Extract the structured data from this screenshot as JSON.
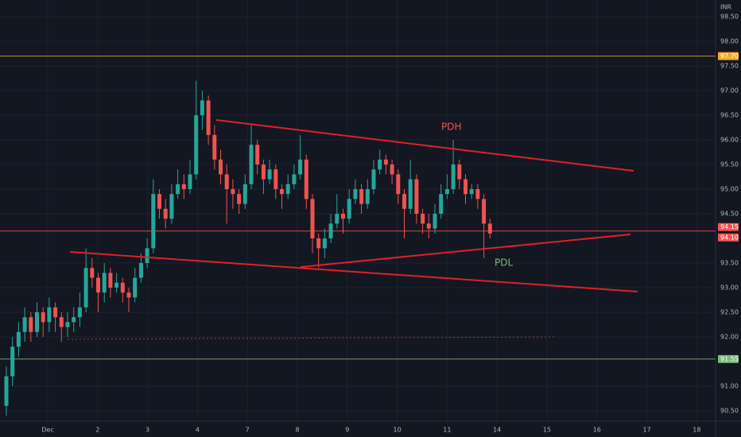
{
  "chart_data": {
    "type": "candlestick",
    "currency": "INR",
    "up_color": "#26a69a",
    "down_color": "#ef5350",
    "grid": true,
    "ylim": [
      90.29,
      98.84
    ],
    "yticks": [
      {
        "value": 90.5,
        "label": "90.50"
      },
      {
        "value": 91,
        "label": "91.00"
      },
      {
        "value": 92,
        "label": "92.00"
      },
      {
        "value": 92.5,
        "label": "92.50"
      },
      {
        "value": 93,
        "label": "93.00"
      },
      {
        "value": 93.5,
        "label": "93.50"
      },
      {
        "value": 94.5,
        "label": "94.50"
      },
      {
        "value": 95,
        "label": "95.00"
      },
      {
        "value": 95.5,
        "label": "95.50"
      },
      {
        "value": 96,
        "label": "96.00"
      },
      {
        "value": 96.5,
        "label": "96.50"
      },
      {
        "value": 97,
        "label": "97.00"
      },
      {
        "value": 97.5,
        "label": "97.50"
      },
      {
        "value": 98,
        "label": "98.00"
      },
      {
        "value": 98.5,
        "label": "98.50"
      }
    ],
    "categories": [
      "Dec",
      "2",
      "3",
      "4",
      "7",
      "8",
      "9",
      "10",
      "11",
      "14",
      "15",
      "16",
      "17",
      "18"
    ],
    "candles": [
      [
        90.6,
        91.4,
        90.4,
        91.2
      ],
      [
        91.2,
        92.0,
        91.0,
        91.8
      ],
      [
        91.8,
        92.3,
        91.6,
        92.1
      ],
      [
        92.1,
        92.6,
        91.9,
        92.4
      ],
      [
        92.4,
        92.5,
        91.9,
        92.1
      ],
      [
        92.1,
        92.7,
        92.0,
        92.5
      ],
      [
        92.5,
        92.6,
        92.0,
        92.3
      ],
      [
        92.3,
        92.8,
        92.1,
        92.6
      ],
      [
        92.6,
        92.7,
        92.1,
        92.4
      ],
      [
        92.4,
        92.5,
        91.9,
        92.2
      ],
      [
        92.2,
        92.5,
        92.0,
        92.3
      ],
      [
        92.3,
        92.6,
        92.1,
        92.4
      ],
      [
        92.4,
        92.9,
        92.2,
        92.6
      ],
      [
        92.6,
        93.8,
        92.5,
        93.4
      ],
      [
        93.4,
        93.6,
        93.0,
        93.2
      ],
      [
        93.2,
        93.3,
        92.5,
        92.9
      ],
      [
        92.9,
        93.5,
        92.7,
        93.3
      ],
      [
        93.3,
        93.4,
        92.8,
        93.0
      ],
      [
        93.0,
        93.3,
        92.9,
        93.1
      ],
      [
        93.1,
        93.2,
        92.7,
        92.9
      ],
      [
        92.9,
        93.0,
        92.5,
        92.8
      ],
      [
        92.8,
        93.4,
        92.7,
        93.2
      ],
      [
        93.2,
        93.7,
        93.1,
        93.5
      ],
      [
        93.5,
        94.0,
        93.4,
        93.8
      ],
      [
        93.8,
        95.2,
        93.7,
        94.9
      ],
      [
        94.9,
        95.0,
        94.4,
        94.6
      ],
      [
        94.6,
        94.8,
        94.2,
        94.4
      ],
      [
        94.4,
        95.1,
        94.3,
        94.9
      ],
      [
        94.9,
        95.4,
        94.8,
        95.1
      ],
      [
        95.1,
        95.3,
        94.8,
        95.0
      ],
      [
        95.0,
        95.6,
        94.9,
        95.3
      ],
      [
        95.3,
        97.2,
        95.2,
        96.5
      ],
      [
        96.5,
        97.0,
        96.2,
        96.8
      ],
      [
        96.8,
        96.9,
        95.9,
        96.1
      ],
      [
        96.1,
        96.3,
        95.4,
        95.6
      ],
      [
        95.6,
        95.8,
        95.1,
        95.3
      ],
      [
        95.3,
        95.5,
        94.3,
        95.0
      ],
      [
        95.0,
        95.2,
        94.6,
        94.9
      ],
      [
        94.9,
        95.0,
        94.5,
        94.7
      ],
      [
        94.7,
        95.3,
        94.6,
        95.1
      ],
      [
        95.1,
        96.3,
        95.0,
        95.9
      ],
      [
        95.9,
        96.0,
        95.3,
        95.5
      ],
      [
        95.5,
        95.6,
        94.9,
        95.2
      ],
      [
        95.2,
        95.6,
        95.1,
        95.4
      ],
      [
        95.4,
        95.5,
        94.8,
        95.0
      ],
      [
        95.0,
        95.1,
        94.6,
        94.9
      ],
      [
        94.9,
        95.3,
        94.8,
        95.1
      ],
      [
        95.1,
        95.5,
        95.0,
        95.3
      ],
      [
        95.3,
        96.1,
        95.2,
        95.6
      ],
      [
        95.6,
        95.7,
        94.6,
        94.8
      ],
      [
        94.8,
        94.9,
        93.7,
        94.0
      ],
      [
        94.0,
        94.1,
        93.4,
        93.8
      ],
      [
        93.8,
        94.2,
        93.6,
        94.0
      ],
      [
        94.0,
        94.5,
        93.9,
        94.3
      ],
      [
        94.3,
        94.9,
        94.2,
        94.5
      ],
      [
        94.5,
        94.6,
        94.1,
        94.4
      ],
      [
        94.4,
        95.0,
        94.3,
        94.8
      ],
      [
        94.8,
        95.2,
        94.7,
        95.0
      ],
      [
        95.0,
        95.1,
        94.5,
        94.7
      ],
      [
        94.7,
        95.2,
        94.6,
        95.0
      ],
      [
        95.0,
        95.6,
        94.9,
        95.4
      ],
      [
        95.4,
        95.8,
        95.3,
        95.6
      ],
      [
        95.6,
        95.7,
        95.3,
        95.5
      ],
      [
        95.5,
        95.6,
        95.1,
        95.3
      ],
      [
        95.3,
        95.4,
        94.7,
        94.9
      ],
      [
        94.9,
        95.0,
        94.0,
        94.6
      ],
      [
        94.6,
        95.6,
        94.5,
        95.2
      ],
      [
        95.2,
        95.3,
        94.3,
        94.5
      ],
      [
        94.5,
        94.6,
        94.1,
        94.3
      ],
      [
        94.3,
        94.5,
        94.0,
        94.2
      ],
      [
        94.2,
        94.7,
        94.1,
        94.5
      ],
      [
        94.5,
        95.1,
        94.4,
        94.9
      ],
      [
        94.9,
        95.3,
        94.8,
        95.0
      ],
      [
        95.0,
        96.0,
        94.9,
        95.5
      ],
      [
        95.5,
        95.6,
        95.0,
        95.2
      ],
      [
        95.2,
        95.3,
        94.7,
        94.9
      ],
      [
        94.9,
        95.1,
        94.8,
        95.0
      ],
      [
        95.0,
        95.1,
        94.6,
        94.8
      ],
      [
        94.8,
        94.9,
        93.6,
        94.3
      ],
      [
        94.3,
        94.4,
        94.0,
        94.1
      ]
    ],
    "price_lines": [
      {
        "value": 97.7,
        "label": "97.70",
        "color": "#f0a830"
      },
      {
        "value": 94.15,
        "label": "94.15",
        "color": "#ef5350"
      },
      {
        "value": 94.1,
        "label": "94.10",
        "color": "#ef5350"
      },
      {
        "value": 91.55,
        "label": "91.55",
        "color": "#7cb87a"
      }
    ],
    "annotations": [
      {
        "text": "PDH",
        "color": "#ef5350"
      },
      {
        "text": "PDL",
        "color": "#7cb87a"
      }
    ]
  }
}
